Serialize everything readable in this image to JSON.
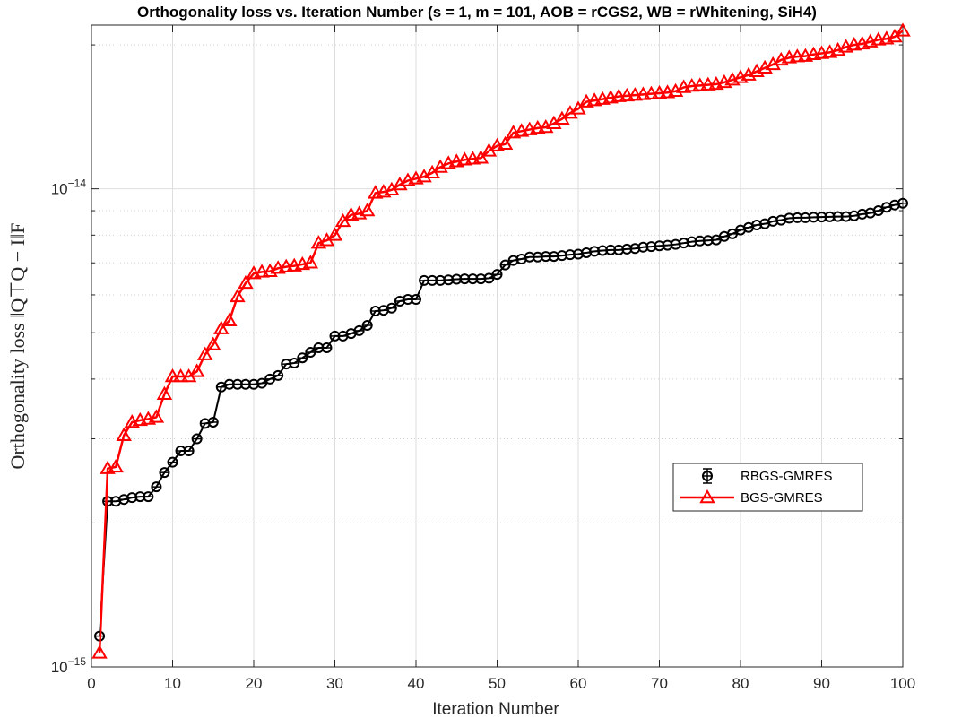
{
  "chart_data": {
    "type": "line",
    "title": "Orthogonality loss vs. Iteration Number (s = 1, m = 101, AOB = rCGS2, WB = rWhitening, SiH4)",
    "xlabel": "Iteration Number",
    "ylabel": "Orthogonality loss ‖Q⊤Q − I‖F",
    "xlim": [
      0,
      100
    ],
    "ylim": [
      1e-15,
      2.2e-14
    ],
    "yscale": "log",
    "grid": true,
    "legend_position": "lower-right",
    "x_ticks": [
      "0",
      "10",
      "20",
      "30",
      "40",
      "50",
      "60",
      "70",
      "80",
      "90",
      "100"
    ],
    "y_ticks": [
      {
        "value": 1e-15,
        "base": "10",
        "exp": "−15"
      },
      {
        "value": 1e-14,
        "base": "10",
        "exp": "−14"
      }
    ],
    "series": [
      {
        "name": "RBGS-GMRES",
        "color": "#000000",
        "marker": "circle",
        "x": [
          1,
          2,
          3,
          4,
          5,
          6,
          7,
          8,
          9,
          10,
          11,
          12,
          13,
          14,
          15,
          16,
          17,
          18,
          19,
          20,
          21,
          22,
          23,
          24,
          25,
          26,
          27,
          28,
          29,
          30,
          31,
          32,
          33,
          34,
          35,
          36,
          37,
          38,
          39,
          40,
          41,
          42,
          43,
          44,
          45,
          46,
          47,
          48,
          49,
          50,
          51,
          52,
          53,
          54,
          55,
          56,
          57,
          58,
          59,
          60,
          61,
          62,
          63,
          64,
          65,
          66,
          67,
          68,
          69,
          70,
          71,
          72,
          73,
          74,
          75,
          76,
          77,
          78,
          79,
          80,
          81,
          82,
          83,
          84,
          85,
          86,
          87,
          88,
          89,
          90,
          91,
          92,
          93,
          94,
          95,
          96,
          97,
          98,
          99,
          100
        ],
        "y": [
          1.16e-15,
          2.22e-15,
          2.22e-15,
          2.24e-15,
          2.26e-15,
          2.27e-15,
          2.27e-15,
          2.38e-15,
          2.55e-15,
          2.68e-15,
          2.83e-15,
          2.83e-15,
          3e-15,
          3.23e-15,
          3.25e-15,
          3.85e-15,
          3.9e-15,
          3.9e-15,
          3.9e-15,
          3.9e-15,
          3.92e-15,
          4e-15,
          4.07e-15,
          4.3e-15,
          4.32e-15,
          4.43e-15,
          4.55e-15,
          4.65e-15,
          4.65e-15,
          4.92e-15,
          4.92e-15,
          4.98e-15,
          5.05e-15,
          5.18e-15,
          5.55e-15,
          5.57e-15,
          5.63e-15,
          5.82e-15,
          5.87e-15,
          5.87e-15,
          6.43e-15,
          6.43e-15,
          6.43e-15,
          6.45e-15,
          6.47e-15,
          6.48e-15,
          6.48e-15,
          6.48e-15,
          6.5e-15,
          6.62e-15,
          6.93e-15,
          7.08e-15,
          7.13e-15,
          7.2e-15,
          7.2e-15,
          7.22e-15,
          7.22e-15,
          7.25e-15,
          7.28e-15,
          7.3e-15,
          7.35e-15,
          7.4e-15,
          7.43e-15,
          7.45e-15,
          7.45e-15,
          7.48e-15,
          7.5e-15,
          7.55e-15,
          7.57e-15,
          7.6e-15,
          7.62e-15,
          7.65e-15,
          7.7e-15,
          7.75e-15,
          7.78e-15,
          7.8e-15,
          7.82e-15,
          7.95e-15,
          8.05e-15,
          8.2e-15,
          8.3e-15,
          8.4e-15,
          8.45e-15,
          8.55e-15,
          8.6e-15,
          8.68e-15,
          8.7e-15,
          8.7e-15,
          8.72e-15,
          8.73e-15,
          8.74e-15,
          8.75e-15,
          8.75e-15,
          8.78e-15,
          8.85e-15,
          8.9e-15,
          9e-15,
          9.15e-15,
          9.25e-15,
          9.33e-15
        ]
      },
      {
        "name": "BGS-GMRES",
        "color": "#ff0000",
        "marker": "triangle",
        "x": [
          1,
          2,
          3,
          4,
          5,
          6,
          7,
          8,
          9,
          10,
          11,
          12,
          13,
          14,
          15,
          16,
          17,
          18,
          19,
          20,
          21,
          22,
          23,
          24,
          25,
          26,
          27,
          28,
          29,
          30,
          31,
          32,
          33,
          34,
          35,
          36,
          37,
          38,
          39,
          40,
          41,
          42,
          43,
          44,
          45,
          46,
          47,
          48,
          49,
          50,
          51,
          52,
          53,
          54,
          55,
          56,
          57,
          58,
          59,
          60,
          61,
          62,
          63,
          64,
          65,
          66,
          67,
          68,
          69,
          70,
          71,
          72,
          73,
          74,
          75,
          76,
          77,
          78,
          79,
          80,
          81,
          82,
          83,
          84,
          85,
          86,
          87,
          88,
          89,
          90,
          91,
          92,
          93,
          94,
          95,
          96,
          97,
          98,
          99,
          100
        ],
        "y": [
          1.07e-15,
          2.6e-15,
          2.62e-15,
          3.05e-15,
          3.25e-15,
          3.28e-15,
          3.3e-15,
          3.33e-15,
          3.72e-15,
          4.05e-15,
          4.05e-15,
          4.05e-15,
          4.15e-15,
          4.5e-15,
          4.72e-15,
          5.1e-15,
          5.3e-15,
          5.95e-15,
          6.35e-15,
          6.65e-15,
          6.7e-15,
          6.72e-15,
          6.82e-15,
          6.87e-15,
          6.9e-15,
          6.95e-15,
          7e-15,
          7.7e-15,
          7.8e-15,
          8e-15,
          8.55e-15,
          8.82e-15,
          8.87e-15,
          9e-15,
          9.8e-15,
          9.85e-15,
          9.95e-15,
          1.02e-14,
          1.04e-14,
          1.05e-14,
          1.06e-14,
          1.08e-14,
          1.11e-14,
          1.13e-14,
          1.14e-14,
          1.15e-14,
          1.155e-14,
          1.16e-14,
          1.2e-14,
          1.23e-14,
          1.24e-14,
          1.31e-14,
          1.32e-14,
          1.33e-14,
          1.34e-14,
          1.345e-14,
          1.37e-14,
          1.4e-14,
          1.44e-14,
          1.47e-14,
          1.52e-14,
          1.53e-14,
          1.54e-14,
          1.55e-14,
          1.56e-14,
          1.565e-14,
          1.57e-14,
          1.575e-14,
          1.58e-14,
          1.585e-14,
          1.59e-14,
          1.6e-14,
          1.63e-14,
          1.64e-14,
          1.645e-14,
          1.65e-14,
          1.655e-14,
          1.67e-14,
          1.69e-14,
          1.71e-14,
          1.73e-14,
          1.76e-14,
          1.79e-14,
          1.82e-14,
          1.86e-14,
          1.88e-14,
          1.89e-14,
          1.895e-14,
          1.91e-14,
          1.92e-14,
          1.93e-14,
          1.95e-14,
          1.98e-14,
          2e-14,
          2.01e-14,
          2.03e-14,
          2.05e-14,
          2.06e-14,
          2.08e-14,
          2.14e-14
        ]
      }
    ]
  }
}
